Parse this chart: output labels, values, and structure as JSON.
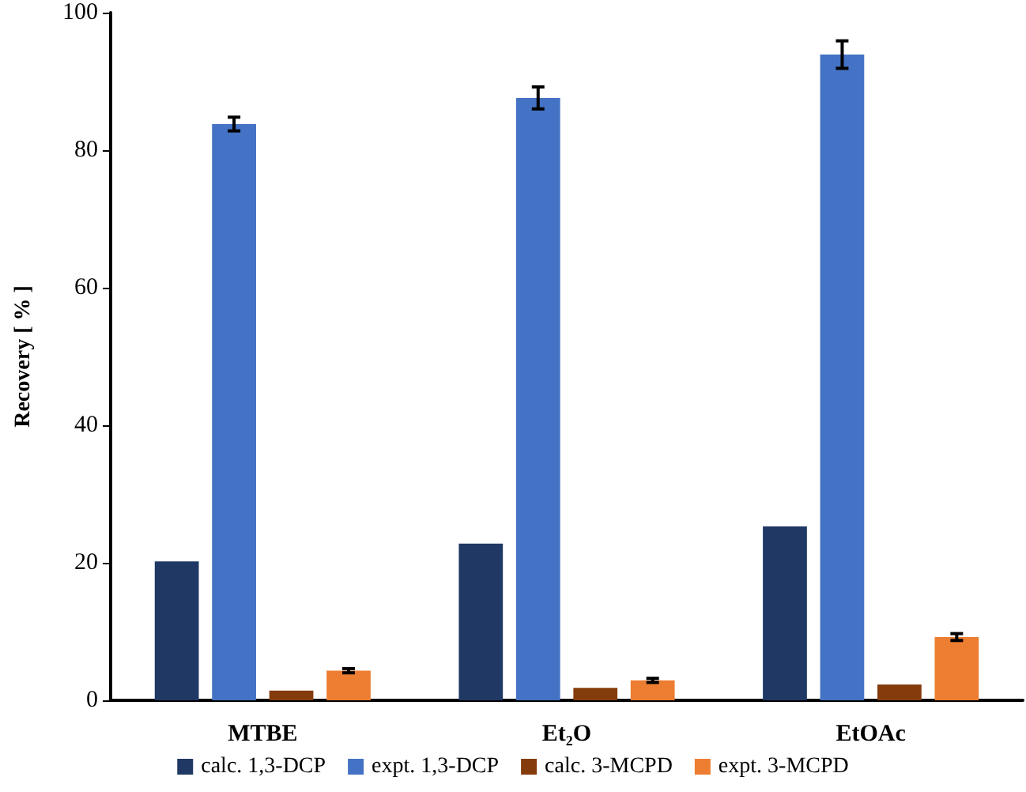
{
  "chart_data": {
    "type": "bar",
    "ylabel": "Recovery [ % ]",
    "categories": [
      "MTBE",
      "Et₂O",
      "EtOAc"
    ],
    "series": [
      {
        "name": "calc. 1,3-DCP",
        "color": "#203864",
        "values": [
          20.2,
          22.8,
          25.3
        ]
      },
      {
        "name": "expt. 1,3-DCP",
        "color": "#4472c4",
        "values": [
          83.8,
          87.6,
          93.9
        ],
        "errors": [
          1.0,
          1.6,
          2.0
        ]
      },
      {
        "name": "calc. 3-MCPD",
        "color": "#843c0c",
        "values": [
          1.4,
          1.8,
          2.3
        ]
      },
      {
        "name": "expt. 3-MCPD",
        "color": "#ed7d31",
        "values": [
          4.3,
          2.9,
          9.2
        ],
        "errors": [
          0.3,
          0.3,
          0.5
        ]
      }
    ],
    "ylim": [
      0,
      100
    ],
    "yticks": [
      0,
      20,
      40,
      60,
      80,
      100
    ],
    "grid": false,
    "legend": "bottom"
  }
}
